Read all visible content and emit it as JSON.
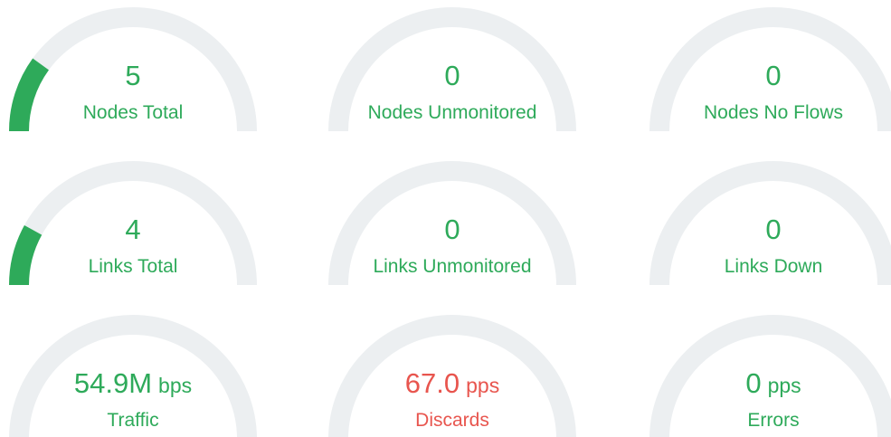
{
  "gauges": [
    {
      "value": 5,
      "label": "Nodes Total",
      "range": [
        0,
        25
      ],
      "color": "#2eaa5a"
    },
    {
      "value": 0,
      "label": "Nodes Unmonitored",
      "range": [
        0,
        25
      ],
      "color": "#2eaa5a"
    },
    {
      "value": 0,
      "label": "Nodes No Flows",
      "range": [
        0,
        25
      ],
      "color": "#2eaa5a"
    },
    {
      "value": 4,
      "label": "Links Total",
      "range": [
        0,
        25
      ],
      "color": "#2eaa5a"
    },
    {
      "value": 0,
      "label": "Links Unmonitored",
      "range": [
        0,
        25
      ],
      "color": "#2eaa5a"
    },
    {
      "value": 0,
      "label": "Links Down",
      "range": [
        0,
        25
      ],
      "color": "#2eaa5a"
    },
    {
      "value": 54900000,
      "value_label": "54.9M",
      "unit": "bps",
      "label": "Traffic",
      "color": "#2eaa5a"
    },
    {
      "value": 67,
      "value_label": "67.0",
      "unit": "pps",
      "label": "Discards",
      "color": "#e8554e"
    },
    {
      "value": 0,
      "unit": "pps",
      "label": "Errors",
      "color": "#2eaa5a"
    }
  ]
}
